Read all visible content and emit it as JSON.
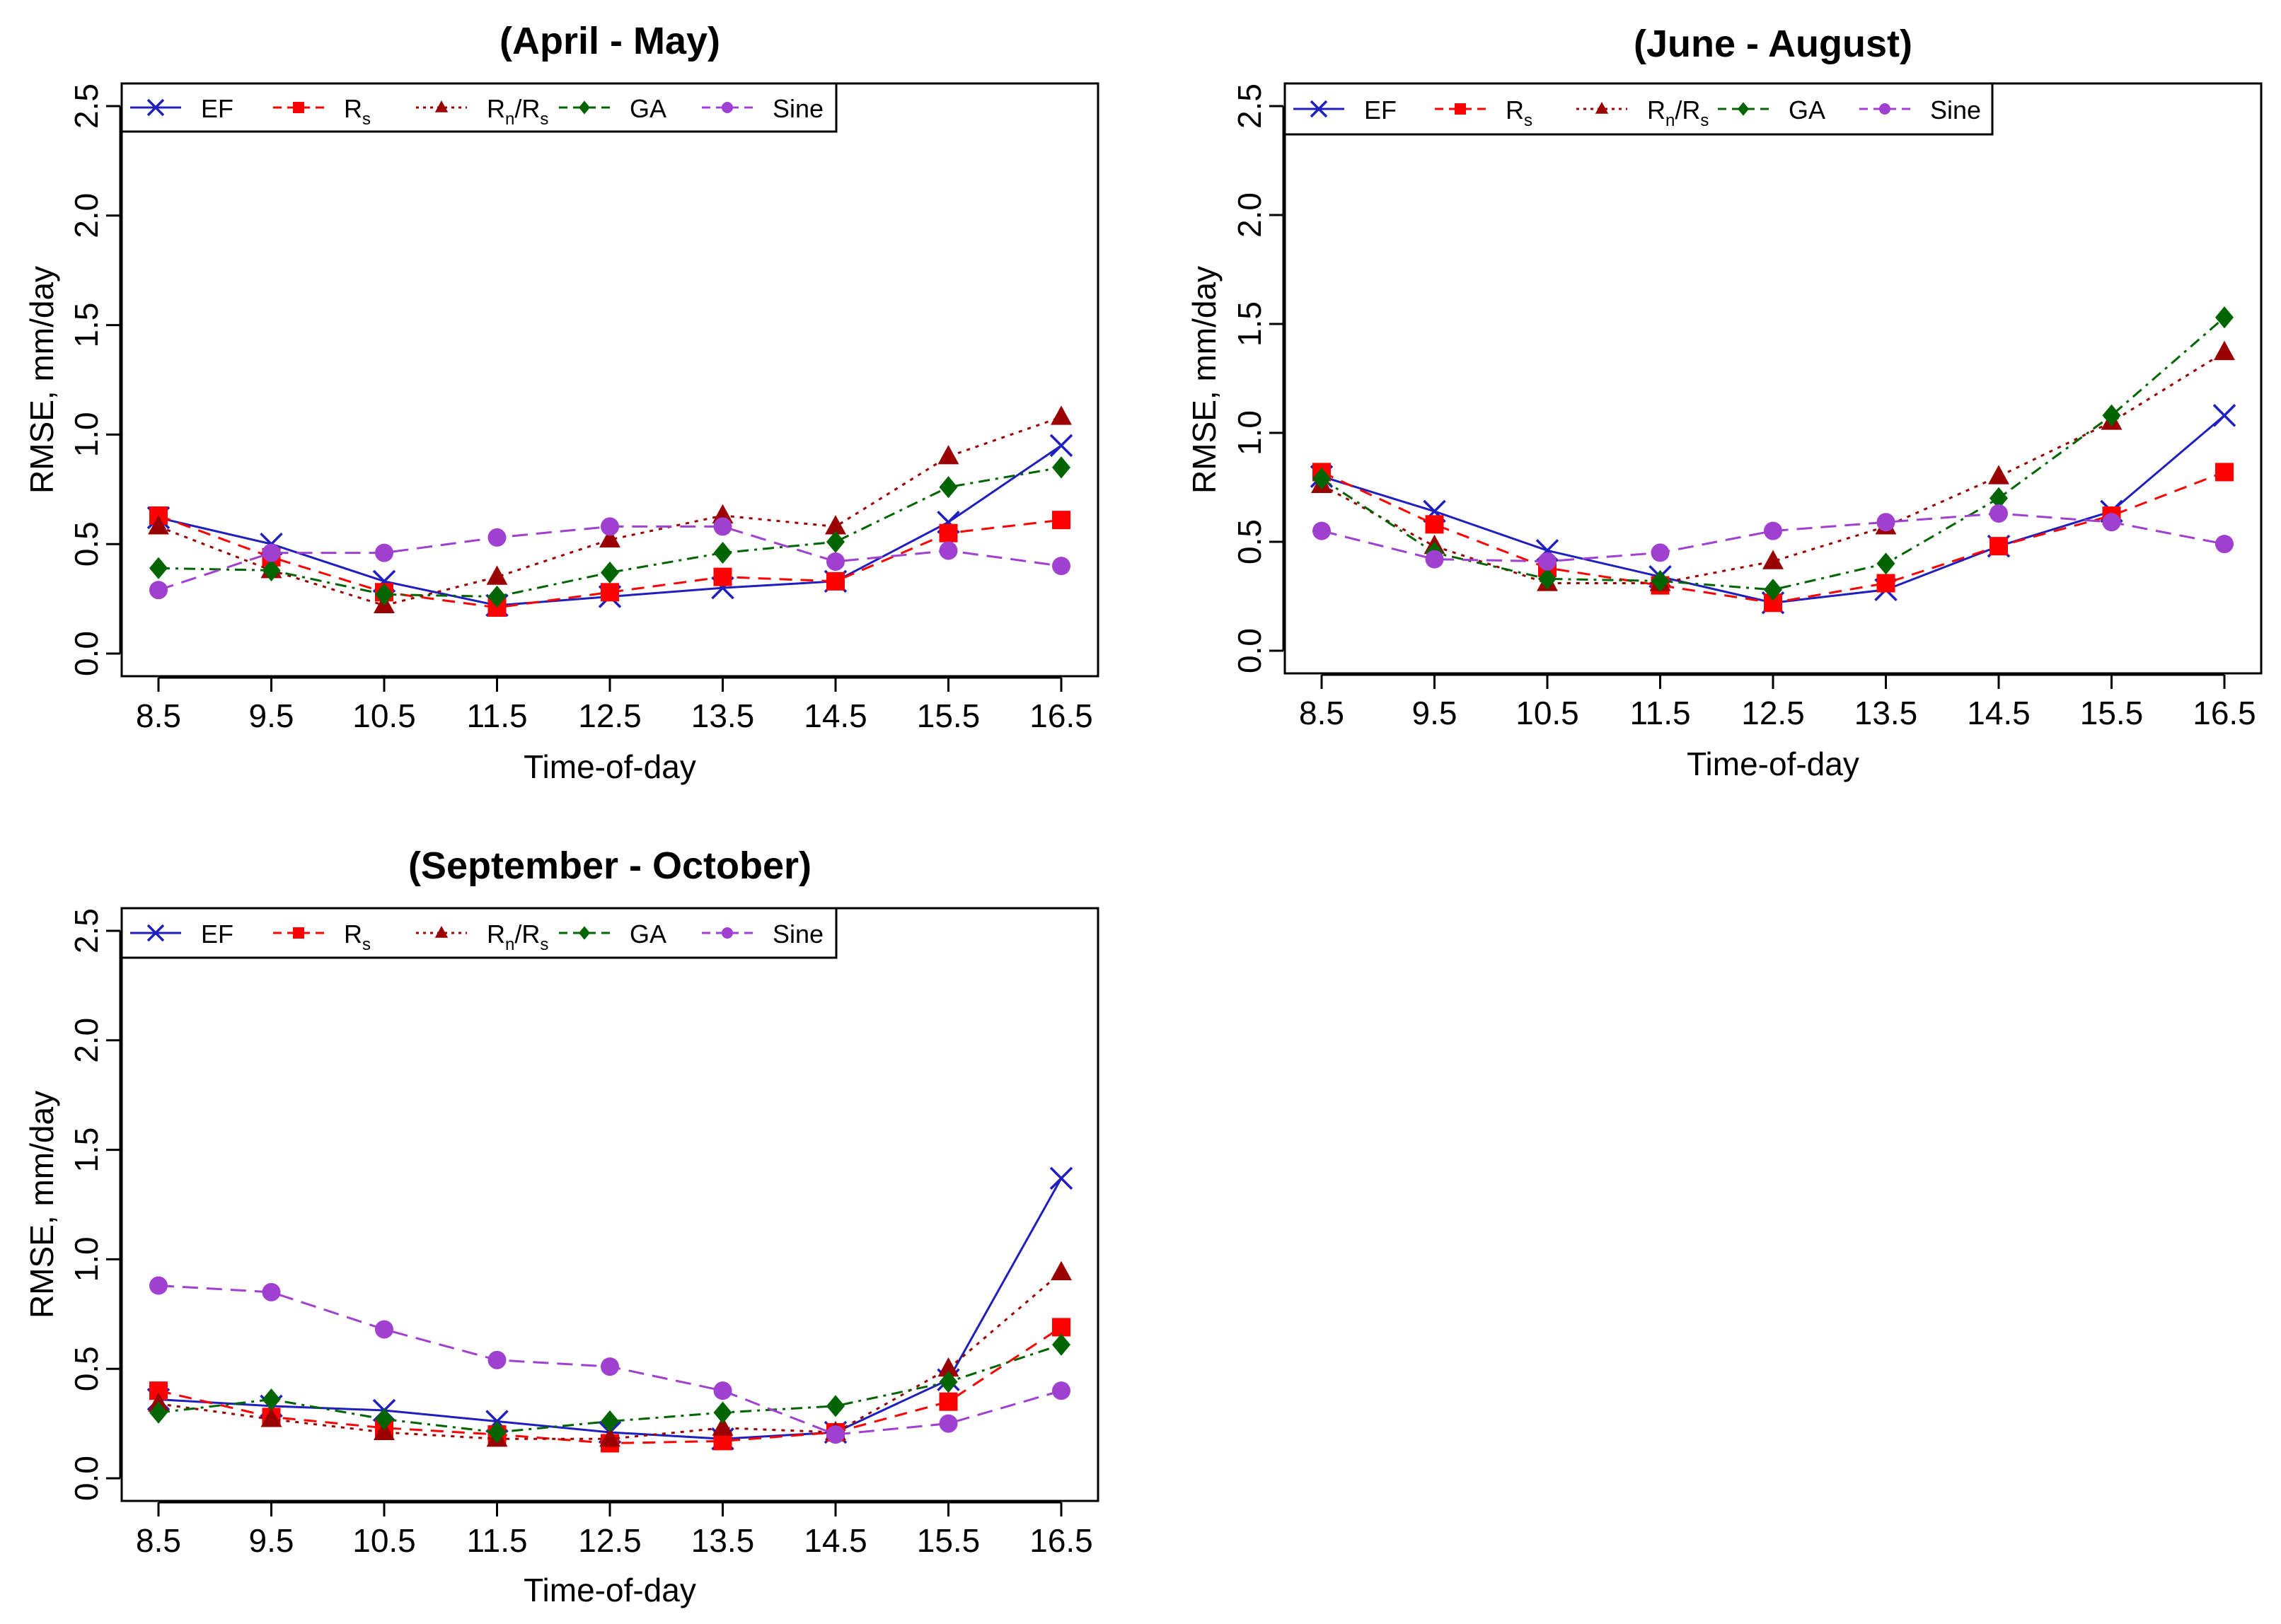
{
  "chart_data": [
    {
      "type": "line",
      "title": "(April - May)",
      "xlabel": "Time-of-day",
      "ylabel": "RMSE, mm/day",
      "x": [
        8.5,
        9.5,
        10.5,
        11.5,
        12.5,
        13.5,
        14.5,
        15.5,
        16.5
      ],
      "x_tick_labels": [
        "8.5",
        "9.5",
        "10.5",
        "11.5",
        "12.5",
        "13.5",
        "14.5",
        "15.5",
        "16.5"
      ],
      "ylim": [
        0,
        2.5
      ],
      "y_ticks": [
        0,
        0.5,
        1.0,
        1.5,
        2.0,
        2.5
      ],
      "y_tick_labels": [
        "0.0",
        "0.5",
        "1.0",
        "1.5",
        "2.0",
        "2.5"
      ],
      "grid": false,
      "legend_position": "top-left",
      "series": [
        {
          "name": "EF",
          "legend_main": "EF",
          "legend_sub": "",
          "legend_tail": "",
          "color": "#1f1fbf",
          "marker": "x",
          "dash": "solid",
          "values": [
            0.62,
            0.5,
            0.33,
            0.22,
            0.26,
            0.3,
            0.33,
            0.6,
            0.95
          ]
        },
        {
          "name": "Rs",
          "legend_main": "R",
          "legend_sub": "s",
          "legend_tail": "",
          "color": "#ff0000",
          "marker": "square",
          "dash": "dashed",
          "values": [
            0.63,
            0.44,
            0.28,
            0.21,
            0.28,
            0.35,
            0.33,
            0.55,
            0.61
          ]
        },
        {
          "name": "Rn/Rs",
          "legend_main": "R",
          "legend_sub": "n",
          "legend_tail": "/R",
          "legend_sub2": "s",
          "color": "#9b0000",
          "marker": "triangle",
          "dash": "dotted",
          "values": [
            0.58,
            0.38,
            0.22,
            0.35,
            0.52,
            0.63,
            0.58,
            0.9,
            1.08
          ]
        },
        {
          "name": "GA",
          "legend_main": "GA",
          "legend_sub": "",
          "legend_tail": "",
          "color": "#006400",
          "marker": "diamond",
          "dash": "dashdot",
          "values": [
            0.39,
            0.38,
            0.27,
            0.26,
            0.37,
            0.46,
            0.51,
            0.76,
            0.85
          ]
        },
        {
          "name": "Sine",
          "legend_main": "Sine",
          "legend_sub": "",
          "legend_tail": "",
          "color": "#a040d0",
          "marker": "circle",
          "dash": "longdash",
          "values": [
            0.29,
            0.46,
            0.46,
            0.53,
            0.58,
            0.58,
            0.42,
            0.47,
            0.4
          ]
        }
      ]
    },
    {
      "type": "line",
      "title": "(June - August)",
      "xlabel": "Time-of-day",
      "ylabel": "RMSE, mm/day",
      "x": [
        8.5,
        9.5,
        10.5,
        11.5,
        12.5,
        13.5,
        14.5,
        15.5,
        16.5
      ],
      "x_tick_labels": [
        "8.5",
        "9.5",
        "10.5",
        "11.5",
        "12.5",
        "13.5",
        "14.5",
        "15.5",
        "16.5"
      ],
      "ylim": [
        0,
        2.5
      ],
      "y_ticks": [
        0,
        0.5,
        1.0,
        1.5,
        2.0,
        2.5
      ],
      "y_tick_labels": [
        "0.0",
        "0.5",
        "1.0",
        "1.5",
        "2.0",
        "2.5"
      ],
      "grid": false,
      "legend_position": "top-left",
      "series": [
        {
          "name": "EF",
          "legend_main": "EF",
          "legend_sub": "",
          "legend_tail": "",
          "color": "#1f1fbf",
          "marker": "x",
          "dash": "solid",
          "values": [
            0.8,
            0.64,
            0.46,
            0.34,
            0.22,
            0.28,
            0.48,
            0.64,
            1.08
          ]
        },
        {
          "name": "Rs",
          "legend_main": "R",
          "legend_sub": "s",
          "legend_tail": "",
          "color": "#ff0000",
          "marker": "square",
          "dash": "dashed",
          "values": [
            0.82,
            0.58,
            0.38,
            0.3,
            0.22,
            0.31,
            0.48,
            0.62,
            0.82
          ]
        },
        {
          "name": "Rn/Rs",
          "legend_main": "R",
          "legend_sub": "n",
          "legend_tail": "/R",
          "legend_sub2": "s",
          "color": "#9b0000",
          "marker": "triangle",
          "dash": "dotted",
          "values": [
            0.76,
            0.48,
            0.31,
            0.31,
            0.41,
            0.57,
            0.8,
            1.05,
            1.37
          ]
        },
        {
          "name": "GA",
          "legend_main": "GA",
          "legend_sub": "",
          "legend_tail": "",
          "color": "#006400",
          "marker": "diamond",
          "dash": "dashdot",
          "values": [
            0.79,
            0.45,
            0.33,
            0.32,
            0.28,
            0.4,
            0.7,
            1.08,
            1.53
          ]
        },
        {
          "name": "Sine",
          "legend_main": "Sine",
          "legend_sub": "",
          "legend_tail": "",
          "color": "#a040d0",
          "marker": "circle",
          "dash": "longdash",
          "values": [
            0.55,
            0.42,
            0.41,
            0.45,
            0.55,
            0.59,
            0.63,
            0.59,
            0.49
          ]
        }
      ]
    },
    {
      "type": "line",
      "title": "(September - October)",
      "xlabel": "Time-of-day",
      "ylabel": "RMSE, mm/day",
      "x": [
        8.5,
        9.5,
        10.5,
        11.5,
        12.5,
        13.5,
        14.5,
        15.5,
        16.5
      ],
      "x_tick_labels": [
        "8.5",
        "9.5",
        "10.5",
        "11.5",
        "12.5",
        "13.5",
        "14.5",
        "15.5",
        "16.5"
      ],
      "ylim": [
        0,
        2.5
      ],
      "y_ticks": [
        0,
        0.5,
        1.0,
        1.5,
        2.0,
        2.5
      ],
      "y_tick_labels": [
        "0.0",
        "0.5",
        "1.0",
        "1.5",
        "2.0",
        "2.5"
      ],
      "grid": false,
      "legend_position": "top-left",
      "series": [
        {
          "name": "EF",
          "legend_main": "EF",
          "legend_sub": "",
          "legend_tail": "",
          "color": "#1f1fbf",
          "marker": "x",
          "dash": "solid",
          "values": [
            0.36,
            0.33,
            0.31,
            0.26,
            0.21,
            0.18,
            0.21,
            0.45,
            1.37
          ]
        },
        {
          "name": "Rs",
          "legend_main": "R",
          "legend_sub": "s",
          "legend_tail": "",
          "color": "#ff0000",
          "marker": "square",
          "dash": "dashed",
          "values": [
            0.4,
            0.28,
            0.23,
            0.2,
            0.16,
            0.17,
            0.21,
            0.35,
            0.69
          ]
        },
        {
          "name": "Rn/Rs",
          "legend_main": "R",
          "legend_sub": "n",
          "legend_tail": "/R",
          "legend_sub2": "s",
          "color": "#9b0000",
          "marker": "triangle",
          "dash": "dotted",
          "values": [
            0.34,
            0.27,
            0.21,
            0.18,
            0.18,
            0.23,
            0.21,
            0.5,
            0.94
          ]
        },
        {
          "name": "GA",
          "legend_main": "GA",
          "legend_sub": "",
          "legend_tail": "",
          "color": "#006400",
          "marker": "diamond",
          "dash": "dashdot",
          "values": [
            0.3,
            0.36,
            0.27,
            0.21,
            0.26,
            0.3,
            0.33,
            0.44,
            0.61
          ]
        },
        {
          "name": "Sine",
          "legend_main": "Sine",
          "legend_sub": "",
          "legend_tail": "",
          "color": "#a040d0",
          "marker": "circle",
          "dash": "longdash",
          "values": [
            0.88,
            0.85,
            0.68,
            0.54,
            0.51,
            0.4,
            0.2,
            0.25,
            0.4
          ]
        }
      ]
    }
  ]
}
